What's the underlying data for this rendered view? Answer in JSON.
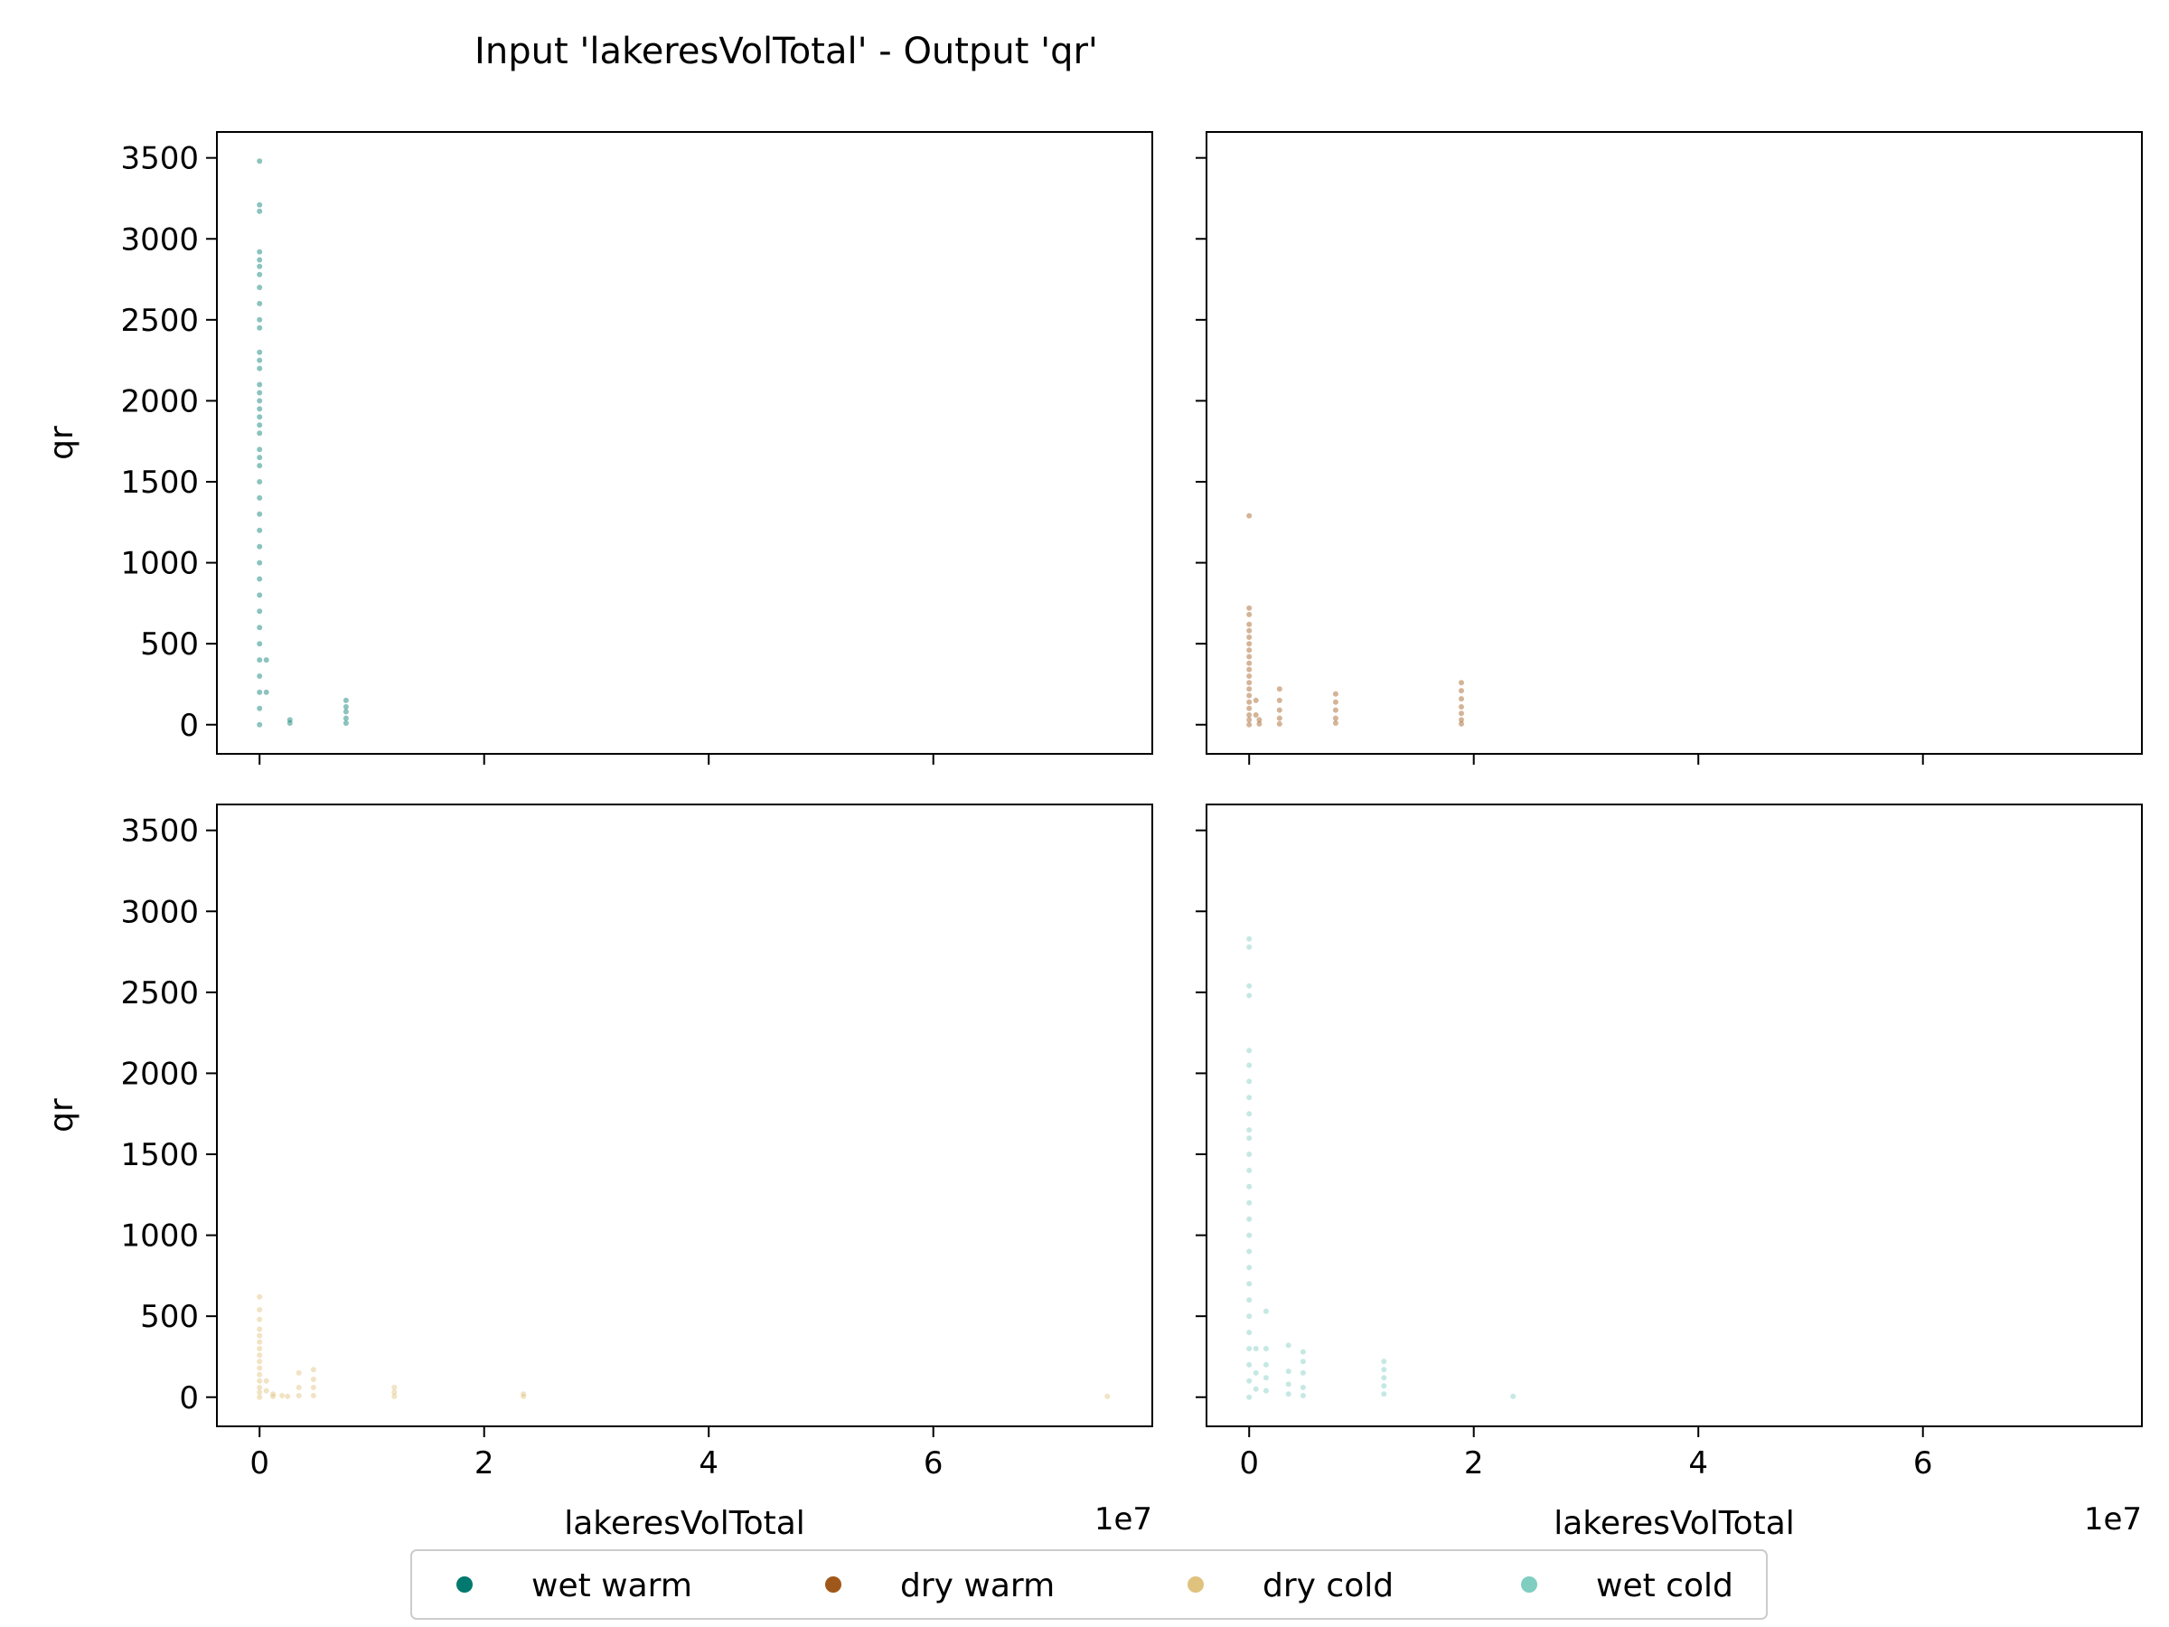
{
  "chart_data": {
    "type": "scatter",
    "title": "Input 'lakeresVolTotal' - Output 'qr'",
    "xlabel": "lakeresVolTotal",
    "ylabel": "qr",
    "x_offset_label": "1e7",
    "xlim": [
      -3800000,
      79500000
    ],
    "ylim": [
      -180,
      3660
    ],
    "xticks": [
      0,
      20000000,
      40000000,
      60000000
    ],
    "xtick_labels": [
      "0",
      "2",
      "4",
      "6"
    ],
    "yticks": [
      0,
      500,
      1000,
      1500,
      2000,
      2500,
      3000,
      3500
    ],
    "ytick_labels": [
      "0",
      "500",
      "1000",
      "1500",
      "2000",
      "2500",
      "3000",
      "3500"
    ],
    "grid": false,
    "legend": {
      "placement": "bottom-center",
      "entries": [
        {
          "name": "wet warm",
          "color": "#01796f"
        },
        {
          "name": "dry warm",
          "color": "#a0581a"
        },
        {
          "name": "dry cold",
          "color": "#dfc27d"
        },
        {
          "name": "wet cold",
          "color": "#80cdc1"
        }
      ]
    },
    "panels": [
      {
        "series": "wet warm",
        "color": "#01796f",
        "points": [
          [
            0,
            3480
          ],
          [
            0,
            3210
          ],
          [
            0,
            3170
          ],
          [
            0,
            2920
          ],
          [
            0,
            2870
          ],
          [
            0,
            2830
          ],
          [
            0,
            2780
          ],
          [
            0,
            2700
          ],
          [
            0,
            2600
          ],
          [
            0,
            2500
          ],
          [
            0,
            2450
          ],
          [
            0,
            2300
          ],
          [
            0,
            2250
          ],
          [
            0,
            2200
          ],
          [
            0,
            2100
          ],
          [
            0,
            2050
          ],
          [
            0,
            2000
          ],
          [
            0,
            1950
          ],
          [
            0,
            1900
          ],
          [
            0,
            1850
          ],
          [
            0,
            1800
          ],
          [
            0,
            1700
          ],
          [
            0,
            1650
          ],
          [
            0,
            1600
          ],
          [
            0,
            1500
          ],
          [
            0,
            1400
          ],
          [
            0,
            1300
          ],
          [
            0,
            1200
          ],
          [
            0,
            1100
          ],
          [
            0,
            1000
          ],
          [
            0,
            900
          ],
          [
            0,
            800
          ],
          [
            0,
            700
          ],
          [
            0,
            600
          ],
          [
            0,
            500
          ],
          [
            0,
            400
          ],
          [
            0,
            300
          ],
          [
            0,
            200
          ],
          [
            0,
            100
          ],
          [
            0,
            0
          ],
          [
            600000,
            400
          ],
          [
            600000,
            200
          ],
          [
            2700000,
            30
          ],
          [
            2700000,
            10
          ],
          [
            7700000,
            150
          ],
          [
            7700000,
            110
          ],
          [
            7700000,
            80
          ],
          [
            7700000,
            40
          ],
          [
            7700000,
            10
          ]
        ]
      },
      {
        "series": "dry warm",
        "color": "#a0581a",
        "points": [
          [
            0,
            1290
          ],
          [
            0,
            720
          ],
          [
            0,
            680
          ],
          [
            0,
            620
          ],
          [
            0,
            580
          ],
          [
            0,
            540
          ],
          [
            0,
            500
          ],
          [
            0,
            460
          ],
          [
            0,
            420
          ],
          [
            0,
            380
          ],
          [
            0,
            340
          ],
          [
            0,
            300
          ],
          [
            0,
            260
          ],
          [
            0,
            220
          ],
          [
            0,
            180
          ],
          [
            0,
            140
          ],
          [
            0,
            100
          ],
          [
            0,
            60
          ],
          [
            0,
            30
          ],
          [
            0,
            0
          ],
          [
            600000,
            150
          ],
          [
            600000,
            60
          ],
          [
            900000,
            30
          ],
          [
            900000,
            5
          ],
          [
            2700000,
            220
          ],
          [
            2700000,
            150
          ],
          [
            2700000,
            90
          ],
          [
            2700000,
            40
          ],
          [
            2700000,
            5
          ],
          [
            7700000,
            190
          ],
          [
            7700000,
            140
          ],
          [
            7700000,
            90
          ],
          [
            7700000,
            40
          ],
          [
            7700000,
            10
          ],
          [
            18900000,
            260
          ],
          [
            18900000,
            210
          ],
          [
            18900000,
            160
          ],
          [
            18900000,
            110
          ],
          [
            18900000,
            70
          ],
          [
            18900000,
            30
          ],
          [
            18900000,
            5
          ]
        ]
      },
      {
        "series": "dry cold",
        "color": "#dfc27d",
        "points": [
          [
            0,
            620
          ],
          [
            0,
            540
          ],
          [
            0,
            480
          ],
          [
            0,
            420
          ],
          [
            0,
            380
          ],
          [
            0,
            340
          ],
          [
            0,
            300
          ],
          [
            0,
            260
          ],
          [
            0,
            220
          ],
          [
            0,
            180
          ],
          [
            0,
            140
          ],
          [
            0,
            100
          ],
          [
            0,
            60
          ],
          [
            0,
            30
          ],
          [
            0,
            0
          ],
          [
            600000,
            100
          ],
          [
            600000,
            40
          ],
          [
            1200000,
            20
          ],
          [
            1200000,
            5
          ],
          [
            2000000,
            10
          ],
          [
            2500000,
            5
          ],
          [
            3500000,
            150
          ],
          [
            3500000,
            60
          ],
          [
            3500000,
            10
          ],
          [
            4800000,
            170
          ],
          [
            4800000,
            110
          ],
          [
            4800000,
            60
          ],
          [
            4800000,
            10
          ],
          [
            12000000,
            60
          ],
          [
            12000000,
            30
          ],
          [
            12000000,
            5
          ],
          [
            23500000,
            20
          ],
          [
            23500000,
            5
          ],
          [
            75500000,
            5
          ]
        ]
      },
      {
        "series": "wet cold",
        "color": "#80cdc1",
        "points": [
          [
            0,
            2830
          ],
          [
            0,
            2780
          ],
          [
            0,
            2540
          ],
          [
            0,
            2480
          ],
          [
            0,
            2140
          ],
          [
            0,
            2050
          ],
          [
            0,
            1950
          ],
          [
            0,
            1850
          ],
          [
            0,
            1750
          ],
          [
            0,
            1650
          ],
          [
            0,
            1600
          ],
          [
            0,
            1500
          ],
          [
            0,
            1400
          ],
          [
            0,
            1300
          ],
          [
            0,
            1200
          ],
          [
            0,
            1100
          ],
          [
            0,
            1000
          ],
          [
            0,
            900
          ],
          [
            0,
            800
          ],
          [
            0,
            700
          ],
          [
            0,
            600
          ],
          [
            0,
            500
          ],
          [
            0,
            400
          ],
          [
            0,
            300
          ],
          [
            0,
            200
          ],
          [
            0,
            100
          ],
          [
            0,
            0
          ],
          [
            600000,
            300
          ],
          [
            600000,
            150
          ],
          [
            600000,
            50
          ],
          [
            1500000,
            530
          ],
          [
            1500000,
            300
          ],
          [
            1500000,
            200
          ],
          [
            1500000,
            120
          ],
          [
            1500000,
            40
          ],
          [
            3500000,
            320
          ],
          [
            3500000,
            160
          ],
          [
            3500000,
            80
          ],
          [
            3500000,
            20
          ],
          [
            4800000,
            280
          ],
          [
            4800000,
            220
          ],
          [
            4800000,
            150
          ],
          [
            4800000,
            60
          ],
          [
            4800000,
            10
          ],
          [
            12000000,
            220
          ],
          [
            12000000,
            170
          ],
          [
            12000000,
            120
          ],
          [
            12000000,
            70
          ],
          [
            12000000,
            20
          ],
          [
            23500000,
            5
          ]
        ]
      }
    ]
  }
}
